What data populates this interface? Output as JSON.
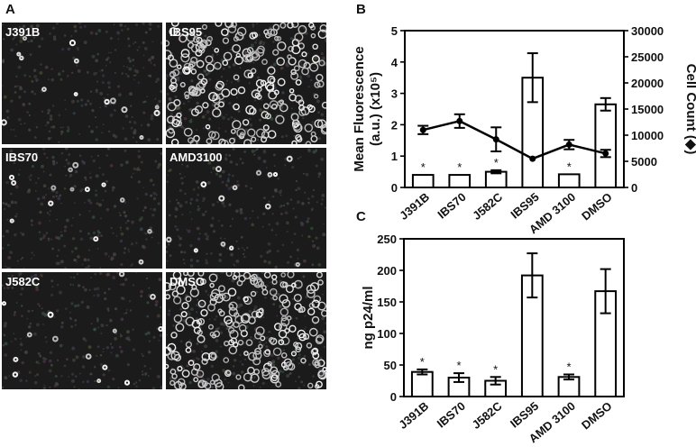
{
  "figure": {
    "panel_letters": [
      "A",
      "B",
      "C"
    ]
  },
  "panel_a": {
    "images": [
      {
        "label": "J391B",
        "density": "low"
      },
      {
        "label": "IBS95",
        "density": "high"
      },
      {
        "label": "IBS70",
        "density": "low"
      },
      {
        "label": "AMD3100",
        "density": "low"
      },
      {
        "label": "J582C",
        "density": "low"
      },
      {
        "label": "DMSO",
        "density": "high"
      }
    ]
  },
  "chart_data": [
    {
      "type": "bar",
      "panel": "B",
      "categories": [
        "J391B",
        "IBS70",
        "J582C",
        "IBS95",
        "AMD 3100",
        "DMSO"
      ],
      "series": [
        {
          "values": [
            0.4,
            0.4,
            0.5,
            3.5,
            0.42,
            2.65
          ],
          "errors": [
            0.0,
            0.0,
            0.05,
            0.78,
            0.0,
            0.2
          ]
        }
      ],
      "line_series": {
        "values": [
          11000,
          12700,
          9200,
          5500,
          8200,
          6500
        ],
        "errors": [
          800,
          1300,
          2300,
          0,
          900,
          700
        ]
      },
      "significance": [
        "*",
        "*",
        "*",
        "",
        "*",
        ""
      ],
      "ylabel": "Mean Fluorescence (a.u.) (x10⁵)",
      "ylabel_line1": "Mean Fluorescence",
      "ylabel_line2": "(a.u.) (x10⁵)",
      "ylim": [
        0,
        5
      ],
      "yticks": [
        "0",
        "1",
        "2",
        "3",
        "4",
        "5"
      ],
      "y2label": "Cell Count (◆)",
      "y2lim": [
        0,
        30000
      ],
      "y2ticks": [
        "0",
        "5000",
        "10000",
        "15000",
        "20000",
        "25000",
        "30000"
      ]
    },
    {
      "type": "bar",
      "panel": "C",
      "categories": [
        "J391B",
        "IBS70",
        "J582C",
        "IBS95",
        "AMD 3100",
        "DMSO"
      ],
      "series": [
        {
          "values": [
            39,
            30,
            25,
            192,
            31,
            167
          ],
          "errors": [
            4,
            7,
            6,
            35,
            4,
            35
          ]
        }
      ],
      "significance": [
        "*",
        "*",
        "*",
        "",
        "*",
        ""
      ],
      "ylabel": "ng p24/ml",
      "ylim": [
        0,
        250
      ],
      "yticks": [
        "0",
        "50",
        "100",
        "150",
        "200",
        "250"
      ]
    }
  ]
}
